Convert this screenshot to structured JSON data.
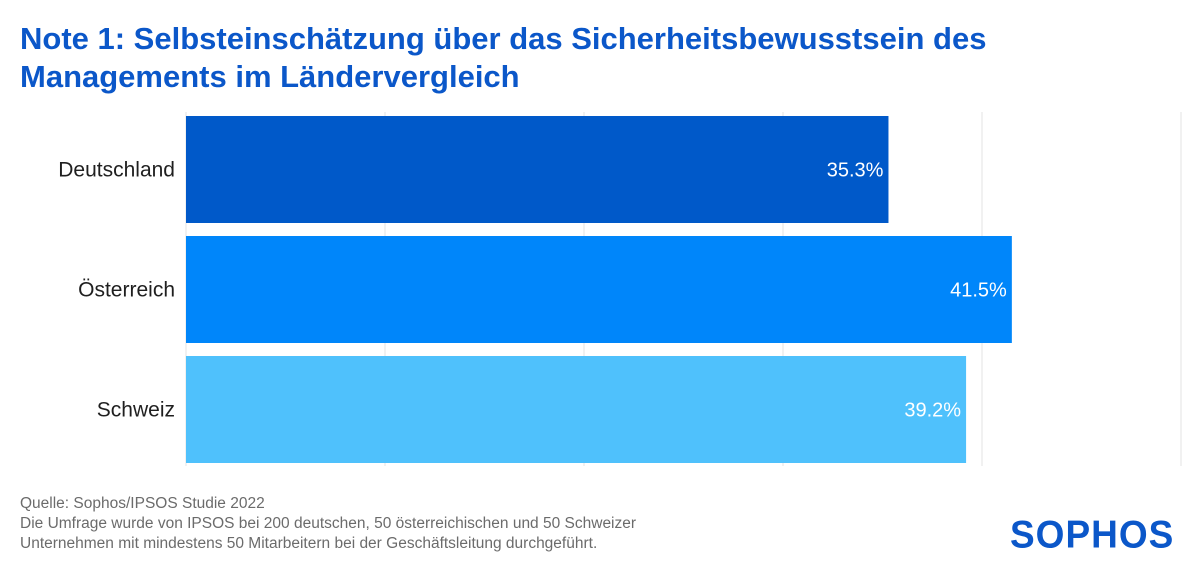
{
  "chart_data": {
    "type": "bar",
    "orientation": "horizontal",
    "title": "Note 1: Selbsteinschätzung über das Sicherheitsbewusstsein des Managements im Ländervergleich",
    "categories": [
      "Deutschland",
      "Österreich",
      "Schweiz"
    ],
    "values": [
      35.3,
      41.5,
      39.2
    ],
    "value_labels": [
      "35.3%",
      "41.5%",
      "39.2%"
    ],
    "colors": [
      "#0059c9",
      "#0086fa",
      "#4fc1fc"
    ],
    "xlim": [
      0,
      50
    ],
    "grid": true,
    "legend": "none"
  },
  "footnote": {
    "source": "Quelle: Sophos/IPSOS Studie 2022",
    "line2": "Die Umfrage wurde von IPSOS bei 200 deutschen, 50 österreichischen und 50 Schweizer",
    "line3": "Unternehmen mit mindestens 50 Mitarbeitern bei der Geschäftsleitung durchgeführt."
  },
  "brand": {
    "logo_text": "SOPHOS",
    "color": "#0b57c9"
  }
}
